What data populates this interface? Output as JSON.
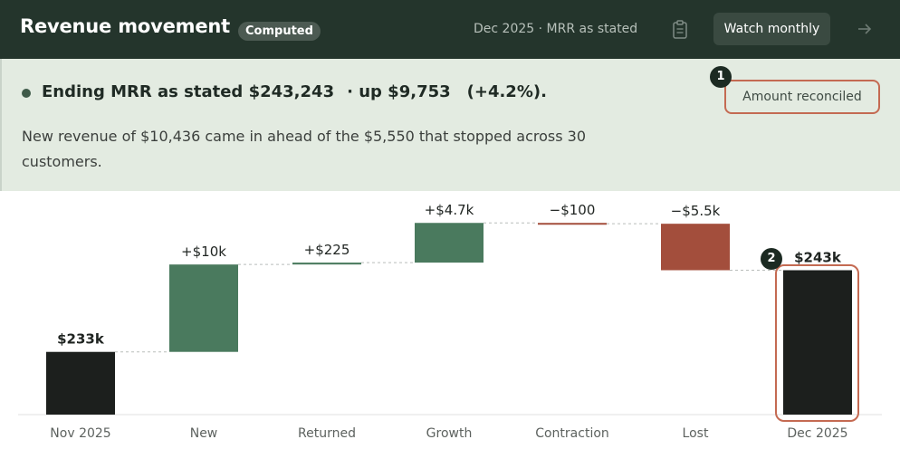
{
  "header": {
    "title": "Revenue movement",
    "badge": "Computed",
    "period": "Dec 2025 · MRR as stated",
    "watch_button": "Watch monthly"
  },
  "summary": {
    "headline_lead": "Ending MRR as stated $243,243",
    "headline_change": "· up $9,753",
    "headline_pct": "(+4.2%).",
    "description": "New revenue of $10,436 came in ahead of the $5,550 that stopped across 30 customers.",
    "reconciled_label": "Amount reconciled"
  },
  "markers": [
    "1",
    "2"
  ],
  "colors": {
    "header_bg": "#24352c",
    "summary_bg": "#e3ebe1",
    "total_bar": "#1c1f1d",
    "increase_bar": "#4a7a5e",
    "decrease_bar": "#a34e3c",
    "highlight": "#c46a52"
  },
  "chart_data": {
    "type": "bar",
    "subtype": "waterfall",
    "categories": [
      "Nov 2025",
      "New",
      "Returned",
      "Growth",
      "Contraction",
      "Lost",
      "Dec 2025"
    ],
    "values": [
      233490,
      10436,
      225,
      4742,
      -100,
      -5550,
      243243
    ],
    "kinds": [
      "total",
      "increase",
      "increase",
      "increase",
      "decrease",
      "decrease",
      "total"
    ],
    "data_labels": [
      "$233k",
      "+$10k",
      "+$225",
      "+$4.7k",
      "−$100",
      "−$5.5k",
      "$243k"
    ],
    "ylim": [
      226000,
      250000
    ],
    "connectors": "dashed",
    "grid": false
  }
}
